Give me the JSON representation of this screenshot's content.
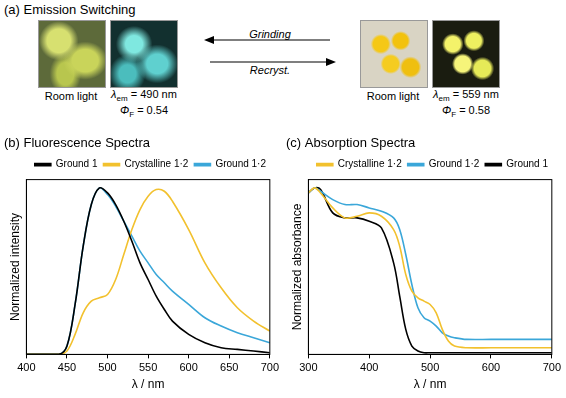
{
  "panel_a": {
    "title": "(a) Emission Switching",
    "left": {
      "photo_caption": "Room light",
      "emission": {
        "symbol": "λ",
        "sub": "em",
        "text": " = 490 nm"
      },
      "yield": {
        "symbol": "Φ",
        "sub": "F",
        "text": " = 0.54"
      }
    },
    "right": {
      "photo_caption": "Room light",
      "emission": {
        "symbol": "λ",
        "sub": "em",
        "text": " = 559 nm"
      },
      "yield": {
        "symbol": "Φ",
        "sub": "F",
        "text": " = 0.58"
      }
    },
    "arrows": [
      "Grinding",
      "Recryst."
    ]
  },
  "chart_data": [
    {
      "type": "line",
      "title": "(b) Fluorescence Spectra",
      "x_label": "λ / nm",
      "y_label": "Normalized intensity",
      "x": [
        400,
        440,
        450,
        460,
        470,
        480,
        490,
        500,
        510,
        520,
        530,
        540,
        550,
        560,
        570,
        580,
        600,
        620,
        640,
        660,
        680,
        700
      ],
      "series": [
        {
          "name": "Ground 1",
          "color": "#000000",
          "values": [
            0,
            0,
            0.05,
            0.3,
            0.65,
            0.9,
            1.0,
            0.97,
            0.9,
            0.8,
            0.68,
            0.55,
            0.45,
            0.35,
            0.27,
            0.2,
            0.12,
            0.07,
            0.04,
            0.03,
            0.02,
            0.01
          ]
        },
        {
          "name": "Crystalline 1·2",
          "color": "#f2c12e",
          "values": [
            0,
            0,
            0.02,
            0.12,
            0.25,
            0.32,
            0.34,
            0.36,
            0.45,
            0.6,
            0.75,
            0.87,
            0.95,
            0.99,
            0.98,
            0.92,
            0.75,
            0.55,
            0.4,
            0.28,
            0.2,
            0.14
          ]
        },
        {
          "name": "Ground 1·2",
          "color": "#3ba7d9",
          "values": [
            0,
            0,
            0.05,
            0.3,
            0.65,
            0.9,
            1.0,
            0.96,
            0.89,
            0.8,
            0.71,
            0.62,
            0.55,
            0.48,
            0.43,
            0.38,
            0.3,
            0.22,
            0.17,
            0.13,
            0.1,
            0.07
          ]
        }
      ],
      "xlim": [
        400,
        700
      ],
      "xticks": [
        400,
        450,
        500,
        550,
        600,
        650,
        700
      ],
      "ylim": [
        0,
        1.05
      ],
      "grid": false,
      "legend": "top",
      "tick_labels": "x"
    },
    {
      "type": "line",
      "title": "(c) Absorption Spectra",
      "x_label": "λ / nm",
      "y_label": "Normalized absorbance",
      "x": [
        300,
        310,
        320,
        340,
        360,
        380,
        400,
        420,
        440,
        450,
        460,
        470,
        480,
        490,
        500,
        510,
        520,
        530,
        540,
        560,
        600,
        650,
        700
      ],
      "series": [
        {
          "name": "Crystalline 1·2",
          "color": "#f2c12e",
          "values": [
            0.97,
            1.0,
            0.97,
            0.88,
            0.82,
            0.83,
            0.85,
            0.83,
            0.75,
            0.65,
            0.48,
            0.38,
            0.34,
            0.32,
            0.3,
            0.25,
            0.15,
            0.08,
            0.05,
            0.04,
            0.04,
            0.04,
            0.04
          ]
        },
        {
          "name": "Ground 1·2",
          "color": "#3ba7d9",
          "values": [
            0.97,
            1.0,
            0.98,
            0.93,
            0.9,
            0.9,
            0.88,
            0.86,
            0.82,
            0.75,
            0.6,
            0.42,
            0.28,
            0.22,
            0.2,
            0.17,
            0.13,
            0.11,
            0.1,
            0.09,
            0.09,
            0.09,
            0.09
          ]
        },
        {
          "name": "Ground 1",
          "color": "#000000",
          "values": [
            0.97,
            1.0,
            0.99,
            0.85,
            0.82,
            0.82,
            0.8,
            0.76,
            0.55,
            0.35,
            0.15,
            0.05,
            0.02,
            0.01,
            0.01,
            0.01,
            0.01,
            0.01,
            0.01,
            0.01,
            0.01,
            0.01,
            0.01
          ]
        }
      ],
      "xlim": [
        300,
        700
      ],
      "xticks": [
        300,
        400,
        500,
        600,
        700
      ],
      "ylim": [
        0,
        1.05
      ],
      "grid": false,
      "legend": "top",
      "tick_labels": "x"
    }
  ]
}
